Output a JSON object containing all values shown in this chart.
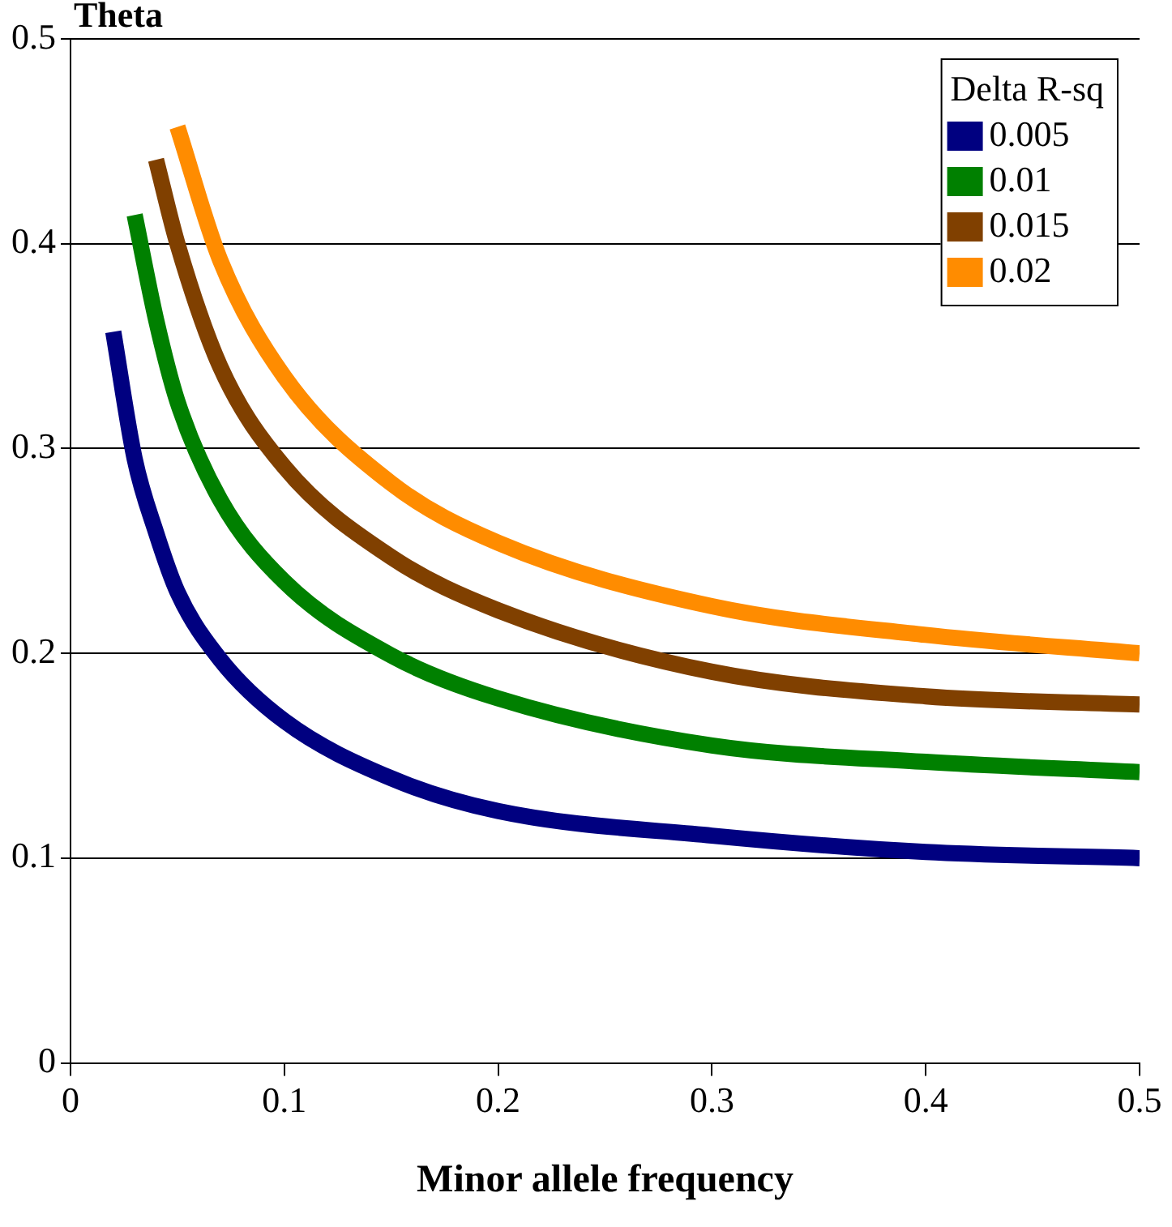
{
  "chart_data": {
    "type": "line",
    "xlabel": "Minor allele frequency",
    "ylabel": "Theta",
    "legend_title": "Delta R-sq",
    "legend": "top right",
    "grid": "y",
    "marker": "none",
    "line_style": "solid",
    "xlim": [
      0,
      0.5
    ],
    "xticks": [
      0,
      0.1,
      0.2,
      0.3,
      0.4,
      0.5
    ],
    "ylim": [
      0,
      0.5
    ],
    "yticks": [
      0,
      0.1,
      0.2,
      0.3,
      0.4,
      0.5
    ],
    "series": [
      {
        "name": "0.005",
        "color": "#000080",
        "x": [
          0.02,
          0.03,
          0.04,
          0.05,
          0.07,
          0.1,
          0.15,
          0.2,
          0.3,
          0.4,
          0.5
        ],
        "values": [
          0.357,
          0.295,
          0.259,
          0.23,
          0.197,
          0.167,
          0.139,
          0.123,
          0.111,
          0.103,
          0.1
        ]
      },
      {
        "name": "0.01",
        "color": "#008000",
        "x": [
          0.03,
          0.04,
          0.05,
          0.07,
          0.1,
          0.15,
          0.2,
          0.3,
          0.4,
          0.5
        ],
        "values": [
          0.414,
          0.363,
          0.323,
          0.275,
          0.235,
          0.199,
          0.178,
          0.155,
          0.147,
          0.142
        ]
      },
      {
        "name": "0.015",
        "color": "#804000",
        "x": [
          0.04,
          0.05,
          0.07,
          0.1,
          0.15,
          0.2,
          0.3,
          0.4,
          0.5
        ],
        "values": [
          0.441,
          0.4,
          0.34,
          0.291,
          0.247,
          0.221,
          0.191,
          0.179,
          0.175
        ]
      },
      {
        "name": "0.02",
        "color": "#ff8c00",
        "x": [
          0.05,
          0.07,
          0.1,
          0.15,
          0.2,
          0.3,
          0.4,
          0.5
        ],
        "values": [
          0.457,
          0.392,
          0.335,
          0.283,
          0.254,
          0.223,
          0.209,
          0.2
        ]
      }
    ]
  }
}
